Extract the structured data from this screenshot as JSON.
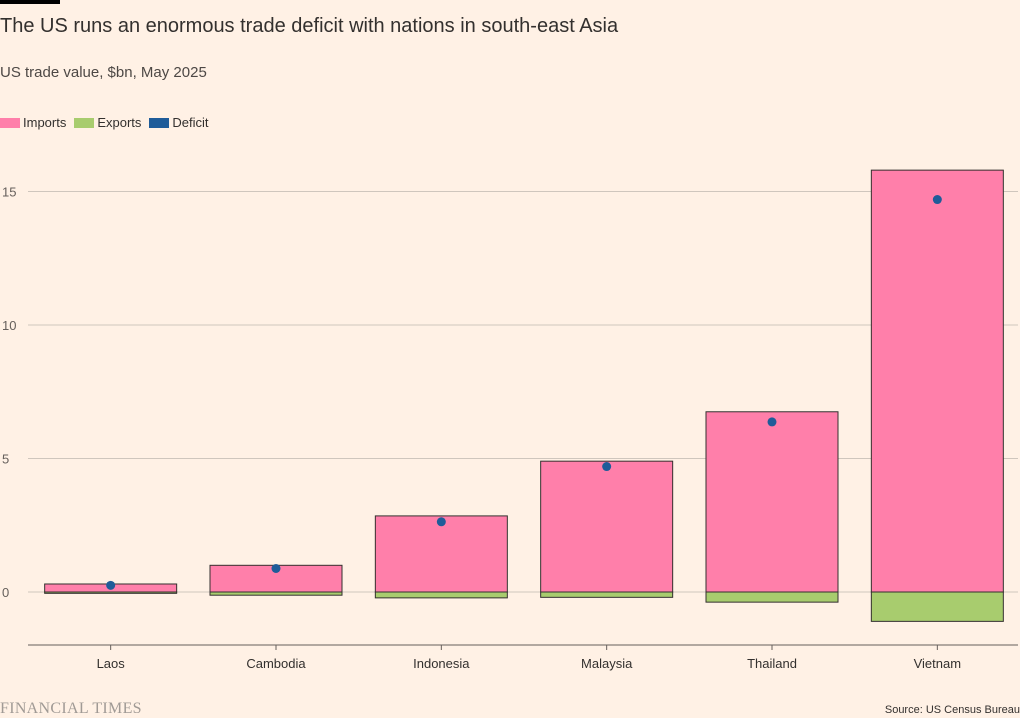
{
  "header": {
    "title": "The US runs an enormous trade deficit with nations in south-east Asia",
    "subtitle": "US trade value, $bn, May 2025"
  },
  "legend": [
    {
      "label": "Imports",
      "color": "#ff7faa"
    },
    {
      "label": "Exports",
      "color": "#a8cc6e"
    },
    {
      "label": "Deficit",
      "color": "#1f5c99"
    }
  ],
  "footer": {
    "brand": "FINANCIAL TIMES",
    "source": "Source: US Census Bureau"
  },
  "chart_data": {
    "type": "bar",
    "categories": [
      "Laos",
      "Cambodia",
      "Indonesia",
      "Malaysia",
      "Thailand",
      "Vietnam"
    ],
    "series": [
      {
        "name": "Imports",
        "values": [
          0.3,
          1.0,
          2.85,
          4.9,
          6.75,
          15.8
        ],
        "color": "#ff7faa"
      },
      {
        "name": "Exports",
        "values": [
          -0.05,
          -0.12,
          -0.22,
          -0.2,
          -0.38,
          -1.1
        ],
        "color": "#a8cc6e"
      },
      {
        "name": "Deficit",
        "values": [
          0.25,
          0.88,
          2.63,
          4.7,
          6.37,
          14.7
        ],
        "color": "#1f5c99"
      }
    ],
    "yticks": [
      0,
      5,
      10,
      15
    ],
    "ylim": [
      -2,
      17
    ],
    "grid": true,
    "legend_position": "top-left"
  }
}
